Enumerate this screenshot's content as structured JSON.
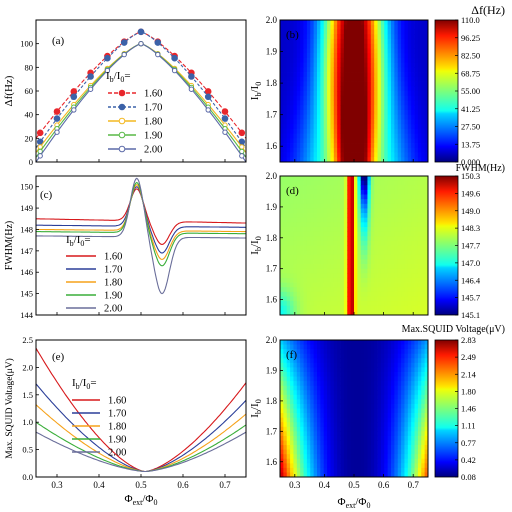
{
  "x_axis": {
    "label": "Φ",
    "label_sub": "ext",
    "label_rest": "/Φ",
    "label_sub2": "0",
    "ticks": [
      "0.3",
      "0.4",
      "0.5",
      "0.6",
      "0.7"
    ]
  },
  "legend_title": {
    "main": "I",
    "sub1": "b",
    "mid": "/I",
    "sub2": "0",
    "tail": "="
  },
  "heat_ylabel": {
    "main": "I",
    "sub1": "b",
    "mid": "/I",
    "sub2": "0"
  },
  "ratios": [
    "1.60",
    "1.70",
    "1.80",
    "1.90",
    "2.00"
  ],
  "colors_a": [
    "#e8262c",
    "#3c62a8",
    "#f3b821",
    "#58b947",
    "#5c6aa8"
  ],
  "colors_ce": [
    "#d7191c",
    "#2b3f99",
    "#f6a21a",
    "#3aae3a",
    "#6a6e9a"
  ],
  "chart_data": [
    {
      "id": "a",
      "panel_label": "(a)",
      "type": "line",
      "ylabel": "Δf(Hz)",
      "ylim": [
        0,
        120
      ],
      "yticks": [
        "0",
        "20",
        "40",
        "60",
        "80",
        "100"
      ],
      "xlim": [
        0.25,
        0.75
      ],
      "marker_x": [
        0.26,
        0.3,
        0.34,
        0.38,
        0.42,
        0.46,
        0.5,
        0.54,
        0.58,
        0.62,
        0.66,
        0.7,
        0.74
      ],
      "series": [
        {
          "name": "1.60",
          "peak": 110,
          "edge": 20
        },
        {
          "name": "1.70",
          "peak": 110,
          "edge": 12
        },
        {
          "name": "1.80",
          "peak": 100,
          "edge": 8
        },
        {
          "name": "1.90",
          "peak": 100,
          "edge": 4
        },
        {
          "name": "2.00",
          "peak": 100,
          "edge": 0
        }
      ]
    },
    {
      "id": "b",
      "panel_label": "(b)",
      "type": "heatmap",
      "colorbar_title": "Δf(Hz)",
      "ylim": [
        1.55,
        2.0
      ],
      "yticks": [
        "1.6",
        "1.7",
        "1.8",
        "1.9",
        "2.0"
      ],
      "xlim": [
        0.25,
        0.75
      ],
      "zlim": [
        0,
        110
      ],
      "colorbar_ticks": [
        "110.0",
        "96.25",
        "82.50",
        "68.75",
        "55.00",
        "41.25",
        "27.50",
        "13.75",
        "0.000"
      ]
    },
    {
      "id": "c",
      "panel_label": "(c)",
      "type": "line",
      "ylabel": "FWHM(Hz)",
      "ylim": [
        144,
        150.5
      ],
      "yticks": [
        "144",
        "145",
        "146",
        "147",
        "148",
        "149",
        "150"
      ],
      "xlim": [
        0.25,
        0.75
      ],
      "series": [
        {
          "name": "1.60",
          "base_left": 148.5,
          "base_right": 148.3,
          "peak": 149.9,
          "dip": 147.3
        },
        {
          "name": "1.70",
          "base_left": 148.2,
          "base_right": 148.1,
          "peak": 150.0,
          "dip": 146.9
        },
        {
          "name": "1.80",
          "base_left": 148.0,
          "base_right": 147.9,
          "peak": 150.1,
          "dip": 146.6
        },
        {
          "name": "1.90",
          "base_left": 147.9,
          "base_right": 147.8,
          "peak": 150.2,
          "dip": 146.3
        },
        {
          "name": "2.00",
          "base_left": 147.7,
          "base_right": 147.6,
          "peak": 150.4,
          "dip": 145.0
        }
      ]
    },
    {
      "id": "d",
      "panel_label": "(d)",
      "type": "heatmap",
      "colorbar_title": "FWHM(Hz)",
      "ylim": [
        1.55,
        2.0
      ],
      "yticks": [
        "1.6",
        "1.7",
        "1.8",
        "1.9",
        "2.0"
      ],
      "xlim": [
        0.25,
        0.75
      ],
      "zlim": [
        145.1,
        150.3
      ],
      "colorbar_ticks": [
        "150.3",
        "149.6",
        "149.0",
        "148.3",
        "147.7",
        "147.0",
        "146.4",
        "145.7",
        "145.1"
      ]
    },
    {
      "id": "e",
      "panel_label": "(e)",
      "type": "line",
      "ylabel": "Max. SQUID Voltage(μV)",
      "ylim": [
        0,
        2.5
      ],
      "yticks": [
        "0.0",
        "0.5",
        "1.0",
        "1.5",
        "2.0",
        "2.5"
      ],
      "xlim": [
        0.25,
        0.75
      ],
      "series": [
        {
          "name": "1.60",
          "left": 2.35,
          "right": 1.72
        },
        {
          "name": "1.70",
          "left": 1.7,
          "right": 1.4
        },
        {
          "name": "1.80",
          "left": 1.32,
          "right": 1.15
        },
        {
          "name": "1.90",
          "left": 1.0,
          "right": 0.95
        },
        {
          "name": "2.00",
          "left": 0.82,
          "right": 0.82
        }
      ]
    },
    {
      "id": "f",
      "panel_label": "(f)",
      "type": "heatmap",
      "colorbar_title": "Max.SQUID Voltage(μV)",
      "ylim": [
        1.55,
        2.0
      ],
      "yticks": [
        "1.6",
        "1.7",
        "1.8",
        "1.9",
        "2.0"
      ],
      "xlim": [
        0.25,
        0.75
      ],
      "zlim": [
        0.08,
        2.83
      ],
      "colorbar_ticks": [
        "2.83",
        "2.49",
        "2.14",
        "1.80",
        "1.46",
        "1.11",
        "0.77",
        "0.42",
        "0.08"
      ]
    }
  ]
}
